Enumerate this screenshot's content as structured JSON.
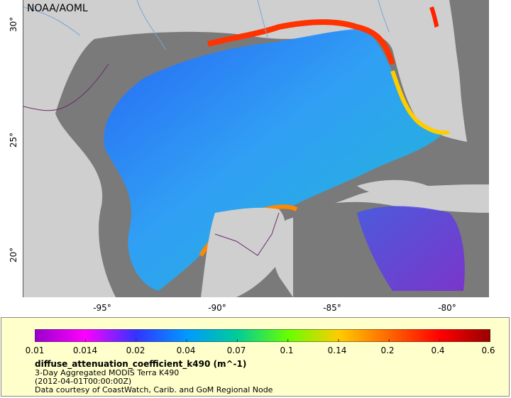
{
  "credit": "NOAA/AOML",
  "y_ticks": [
    "30°",
    "25°",
    "20°"
  ],
  "x_ticks": [
    "-95°",
    "-90°",
    "-85°",
    "-80°"
  ],
  "colorbar": {
    "labels": [
      "0.01",
      "0.014",
      "0.02",
      "0.04",
      "0.07",
      "0.1",
      "0.14",
      "0.2",
      "0.4",
      "0.6"
    ],
    "colors": [
      "#9900cc",
      "#ff00ff",
      "#3333ff",
      "#0099ff",
      "#00cc99",
      "#66ff00",
      "#ffcc00",
      "#ff6600",
      "#ff0000",
      "#990000"
    ]
  },
  "info": {
    "variable": "diffuse_attenuation_coefficient_k490 (m^-1)",
    "line1": "3-Day Aggregated MODIS Terra K490",
    "line2": "(2012-04-01T00:00:00Z)",
    "line3": "Data courtesy of CoastWatch, Carib. and GoM Regional Node"
  },
  "colors": {
    "land": "#cfcfcf",
    "nodata": "#7a7a7a",
    "legend_bg": "#ffffcc",
    "border": "#6a2c6a",
    "river": "#7aa6d6"
  }
}
